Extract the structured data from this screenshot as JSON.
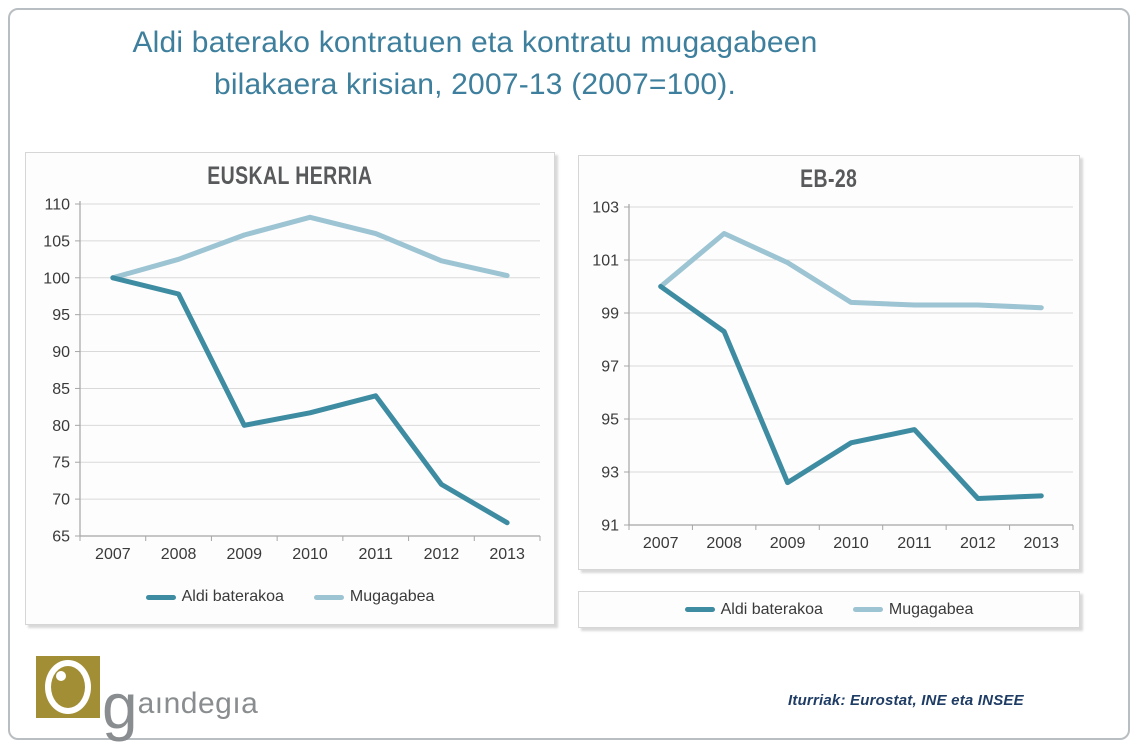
{
  "slide": {
    "title_line1": "Aldi baterako kontratuen eta kontratu mugagabeen",
    "title_line2": "bilakaera krisian, 2007-13 (2007=100).",
    "title_color": "#3d7f9c",
    "source_note": "Iturriak: Eurostat, INE eta INSEE",
    "source_color": "#1e3c64",
    "logo": {
      "g_text": "g",
      "rest_text": "aındegıa",
      "gold": "#a28f35",
      "gray": "#8a8d8f"
    }
  },
  "legend": {
    "items": [
      {
        "label": "Aldi baterakoa",
        "color": "#3e8ca2"
      },
      {
        "label": "Mugagabea",
        "color": "#9cc4d3"
      }
    ]
  },
  "chart_data": [
    {
      "type": "line",
      "title": "EUSKAL HERRIA",
      "categories": [
        "2007",
        "2008",
        "2009",
        "2010",
        "2011",
        "2012",
        "2013"
      ],
      "series": [
        {
          "name": "Aldi baterakoa",
          "color": "#3e8ca2",
          "values": [
            100,
            97.8,
            80,
            81.7,
            84,
            72,
            66.8
          ]
        },
        {
          "name": "Mugagabea",
          "color": "#9cc4d3",
          "values": [
            100,
            102.5,
            105.8,
            108.2,
            106,
            102.3,
            100.3
          ]
        }
      ],
      "xlabel": "",
      "ylabel": "",
      "ylim": [
        65,
        110
      ],
      "ystep": 5,
      "grid": true,
      "legend_position": "bottom-inside"
    },
    {
      "type": "line",
      "title": "EB-28",
      "categories": [
        "2007",
        "2008",
        "2009",
        "2010",
        "2011",
        "2012",
        "2013"
      ],
      "series": [
        {
          "name": "Aldi baterakoa",
          "color": "#3e8ca2",
          "values": [
            100,
            98.3,
            92.6,
            94.1,
            94.6,
            92,
            92.1
          ]
        },
        {
          "name": "Mugagabea",
          "color": "#9cc4d3",
          "values": [
            100,
            102,
            100.9,
            99.4,
            99.3,
            99.3,
            99.2
          ]
        }
      ],
      "xlabel": "",
      "ylabel": "",
      "ylim": [
        91,
        103
      ],
      "ystep": 2,
      "grid": true,
      "legend_position": "bottom-outside-box"
    }
  ]
}
